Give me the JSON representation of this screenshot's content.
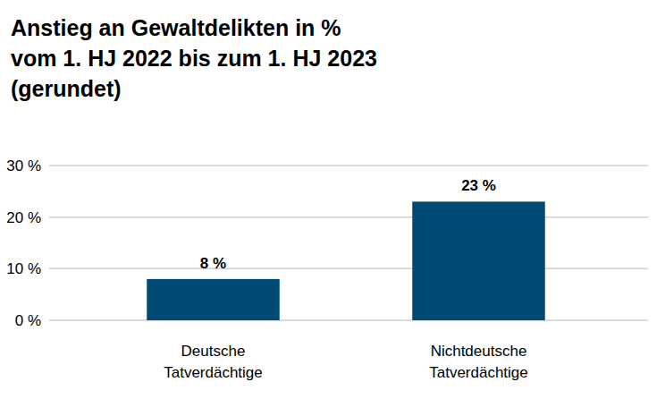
{
  "chart_data": {
    "type": "bar",
    "title": "Anstieg an Gewaltdelikten in %\nvom 1. HJ 2022 bis zum 1. HJ 2023\n(gerundet)",
    "categories": [
      "Deutsche\nTatverdächtige",
      "Nichtdeutsche\nTatverdächtige"
    ],
    "values": [
      8,
      23
    ],
    "value_labels": [
      "8 %",
      "23 %"
    ],
    "data_labels": true,
    "color": "#004b76",
    "ylim": [
      0,
      30
    ],
    "yticks": [
      {
        "value": 0,
        "label": "0 %"
      },
      {
        "value": 10,
        "label": "10 %"
      },
      {
        "value": 20,
        "label": "20 %"
      },
      {
        "value": 30,
        "label": "30 %"
      }
    ],
    "grid": true
  }
}
